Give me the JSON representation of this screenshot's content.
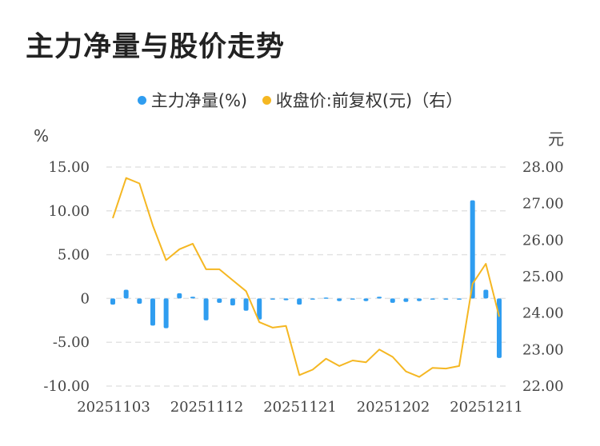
{
  "title": "主力净量与股价走势",
  "legend": {
    "series1": "主力净量(%)",
    "series2": "收盘价:前复权(元)（右）"
  },
  "colors": {
    "bar": "#2f9df0",
    "line": "#f5b722",
    "grid": "#e3e3e3"
  },
  "chart_data": {
    "type": "bar+line",
    "y_left_unit": "%",
    "y_right_unit": "元",
    "y_left_ticks": [
      "15.00",
      "10.00",
      "5.00",
      "0",
      "-5.00",
      "-10.00"
    ],
    "y_right_ticks": [
      "28.00",
      "27.00",
      "26.00",
      "25.00",
      "24.00",
      "23.00",
      "22.00"
    ],
    "ylim_left": [
      -10,
      15
    ],
    "ylim_right": [
      22,
      28
    ],
    "x_tick_labels": [
      "20251103",
      "20251112",
      "20251121",
      "20251202",
      "20251211"
    ],
    "grid": true,
    "series": [
      {
        "name": "主力净量(%)",
        "type": "bar",
        "values": [
          -0.7,
          1.0,
          -0.6,
          -3.1,
          -3.4,
          0.6,
          0.2,
          -2.5,
          -0.5,
          -0.8,
          -1.4,
          -2.4,
          0,
          -0.2,
          -0.7,
          -0.1,
          0.1,
          -0.3,
          -0.1,
          -0.3,
          0.2,
          -0.5,
          -0.4,
          -0.3,
          0,
          -0.1,
          -0.1,
          11.2,
          1.0,
          -6.8
        ]
      },
      {
        "name": "收盘价:前复权(元)（右）",
        "type": "line",
        "values": [
          26.6,
          27.7,
          27.55,
          26.4,
          25.45,
          25.75,
          25.9,
          25.2,
          25.2,
          24.9,
          24.6,
          23.75,
          23.6,
          23.65,
          22.3,
          22.45,
          22.75,
          22.55,
          22.7,
          22.65,
          23.0,
          22.8,
          22.4,
          22.25,
          22.5,
          22.48,
          22.55,
          24.8,
          25.35,
          23.9
        ]
      }
    ]
  }
}
